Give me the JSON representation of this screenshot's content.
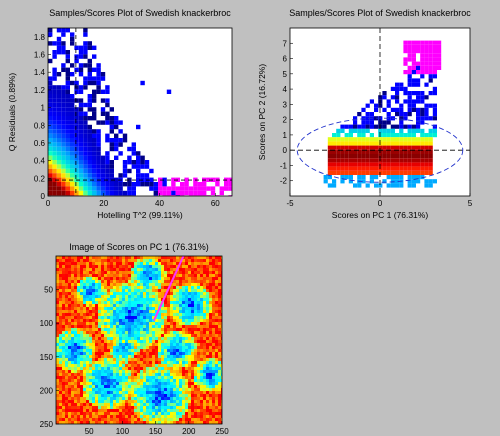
{
  "chart_data": [
    {
      "type": "heatmap",
      "title": "Samples/Scores Plot of Swedish knackerbroc",
      "xlabel": "Hotelling T^2 (99.11%)",
      "ylabel": "Q Residuals (0.89%)",
      "xlim": [
        0,
        66
      ],
      "ylim": [
        0,
        1.9
      ],
      "xticks": [
        0,
        20,
        40,
        60
      ],
      "yticks": [
        0,
        0.2,
        0.4,
        0.6,
        0.8,
        1,
        1.2,
        1.4,
        1.6,
        1.8
      ],
      "xtick_labels": [
        "0",
        "20",
        "40",
        "60"
      ],
      "ytick_labels": [
        "0",
        "0.2",
        "0.4",
        "0.6",
        "0.8",
        "1",
        "1.2",
        "1.4",
        "1.6",
        "1.8"
      ],
      "limit_lines": {
        "vertical_x": 10,
        "horizontal_y": 0.18
      },
      "density_colormap": [
        "#000088",
        "#0000ff",
        "#00aaff",
        "#00ffcc",
        "#ffff00",
        "#ff8800",
        "#ff0000",
        "#880000"
      ],
      "highlight_color": "#ff00ff",
      "grid": false
    },
    {
      "type": "heatmap",
      "title": "Samples/Scores Plot of Swedish knackerbroc",
      "xlabel": "Scores on PC 1 (76.31%)",
      "ylabel": "Scores on PC 2 (16.72%)",
      "xlim": [
        -5,
        5
      ],
      "ylim": [
        -3,
        8
      ],
      "xticks": [
        -5,
        0,
        5
      ],
      "yticks": [
        -2,
        -1,
        0,
        1,
        2,
        3,
        4,
        5,
        6,
        7
      ],
      "xtick_labels": [
        "-5",
        "0",
        "5"
      ],
      "ytick_labels": [
        "-2",
        "-1",
        "0",
        "1",
        "2",
        "3",
        "4",
        "5",
        "6",
        "7"
      ],
      "confidence_ellipse": {
        "center": [
          0,
          0
        ],
        "semi_axis_x": 4.6,
        "semi_axis_y": 2.1
      },
      "density_colormap": [
        "#000088",
        "#0000ff",
        "#00aaff",
        "#00ffcc",
        "#ffff00",
        "#ff8800",
        "#ff0000",
        "#880000"
      ],
      "highlight_color": "#ff00ff",
      "grid": false
    },
    {
      "type": "heatmap",
      "title": "Image of Scores on PC 1 (76.31%)",
      "xlim": [
        0,
        250
      ],
      "ylim": [
        250,
        0
      ],
      "xticks": [
        50,
        100,
        150,
        200,
        250
      ],
      "yticks": [
        50,
        100,
        150,
        200,
        250
      ],
      "xtick_labels": [
        "50",
        "100",
        "150",
        "200",
        "250"
      ],
      "ytick_labels": [
        "50",
        "100",
        "150",
        "200",
        "250"
      ],
      "colormap": [
        "#0000ff",
        "#00aaff",
        "#00ffff",
        "#ffff00",
        "#ff8800",
        "#ff0000"
      ],
      "highlight_color": "#ff00ff"
    }
  ]
}
